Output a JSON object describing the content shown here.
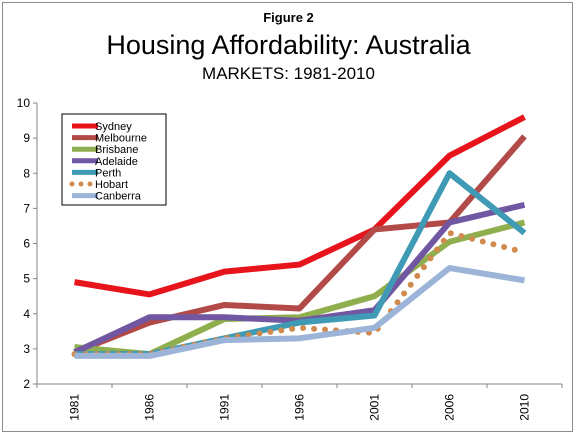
{
  "figure_label": "Figure 2",
  "chart_data": {
    "type": "line",
    "title": "Housing Affordability: Australia",
    "subtitle": "MARKETS: 1981-2010",
    "xlabel": "",
    "ylabel": "",
    "categories": [
      "1981",
      "1986",
      "1991",
      "1996",
      "2001",
      "2006",
      "2010"
    ],
    "ylim": [
      2,
      10
    ],
    "yticks": [
      "2",
      "3",
      "4",
      "5",
      "6",
      "7",
      "8",
      "9",
      "10"
    ],
    "grid": false,
    "legend_position": "top-left",
    "series": [
      {
        "name": "Sydney",
        "color": "#e8141b",
        "style": "solid",
        "values": [
          4.9,
          4.55,
          5.2,
          5.4,
          6.4,
          8.5,
          9.6
        ]
      },
      {
        "name": "Melbourne",
        "color": "#b24b48",
        "style": "solid",
        "values": [
          2.9,
          3.75,
          4.25,
          4.15,
          6.4,
          6.6,
          9.05
        ]
      },
      {
        "name": "Brisbane",
        "color": "#8faf4f",
        "style": "solid",
        "values": [
          3.05,
          2.85,
          3.85,
          3.9,
          4.5,
          6.05,
          6.6
        ]
      },
      {
        "name": "Adelaide",
        "color": "#7157a1",
        "style": "solid",
        "values": [
          2.9,
          3.9,
          3.9,
          3.8,
          4.1,
          6.6,
          7.1
        ]
      },
      {
        "name": "Perth",
        "color": "#3f9bb5",
        "style": "solid",
        "values": [
          2.85,
          2.85,
          3.3,
          3.75,
          3.95,
          8.0,
          6.3
        ]
      },
      {
        "name": "Hobart",
        "color": "#d08a4d",
        "style": "dotted",
        "values": [
          2.85,
          2.85,
          3.3,
          3.6,
          3.45,
          6.3,
          5.75
        ]
      },
      {
        "name": "Canberra",
        "color": "#9bb4d8",
        "style": "solid",
        "values": [
          2.8,
          2.8,
          3.25,
          3.3,
          3.6,
          5.3,
          4.95
        ]
      }
    ]
  }
}
